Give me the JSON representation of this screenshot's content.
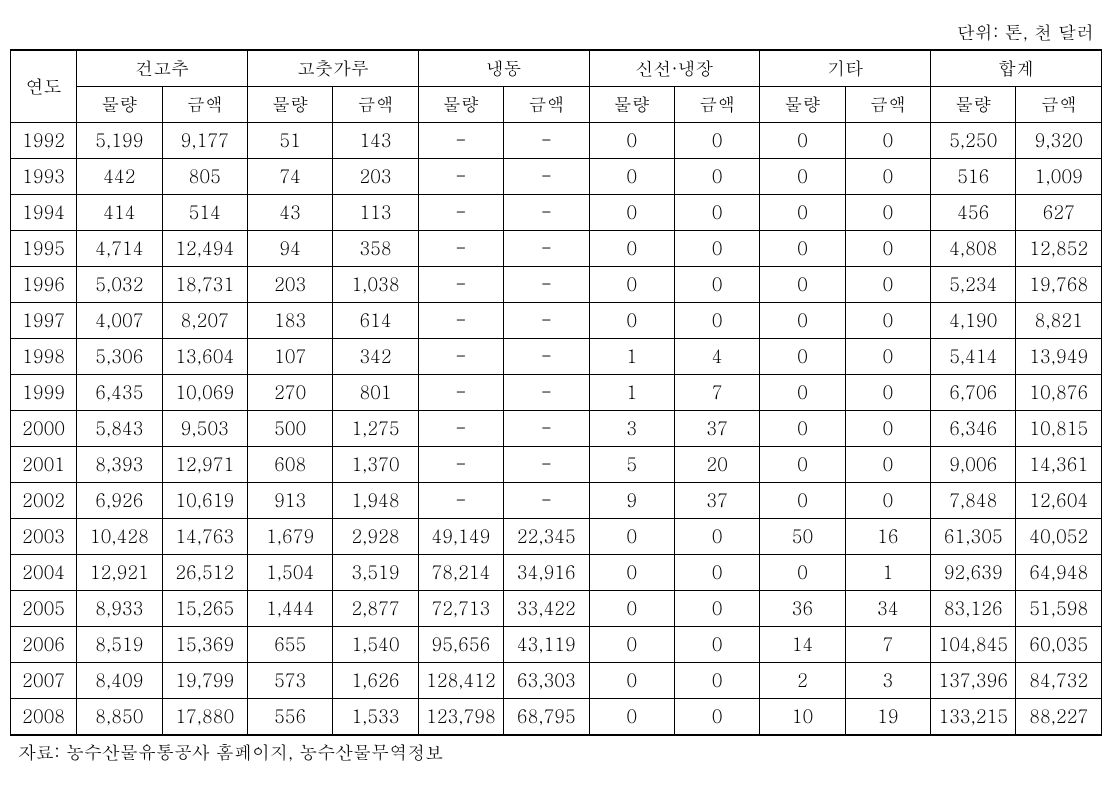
{
  "unit_label": "단위: 톤, 천 달러",
  "source_label": "자료: 농수산물유통공사 홈페이지, 농수산물무역정보",
  "headers": {
    "year": "연도",
    "groups": [
      "건고추",
      "고춧가루",
      "냉동",
      "신선·냉장",
      "기타",
      "합계"
    ],
    "sub": {
      "qty": "물량",
      "amt": "금액"
    }
  },
  "rows": [
    {
      "year": "1992",
      "c": [
        "5,199",
        "9,177",
        "51",
        "143",
        "-",
        "-",
        "0",
        "0",
        "0",
        "0",
        "5,250",
        "9,320"
      ]
    },
    {
      "year": "1993",
      "c": [
        "442",
        "805",
        "74",
        "203",
        "-",
        "-",
        "0",
        "0",
        "0",
        "0",
        "516",
        "1,009"
      ]
    },
    {
      "year": "1994",
      "c": [
        "414",
        "514",
        "43",
        "113",
        "-",
        "-",
        "0",
        "0",
        "0",
        "0",
        "456",
        "627"
      ]
    },
    {
      "year": "1995",
      "c": [
        "4,714",
        "12,494",
        "94",
        "358",
        "-",
        "-",
        "0",
        "0",
        "0",
        "0",
        "4,808",
        "12,852"
      ]
    },
    {
      "year": "1996",
      "c": [
        "5,032",
        "18,731",
        "203",
        "1,038",
        "-",
        "-",
        "0",
        "0",
        "0",
        "0",
        "5,234",
        "19,768"
      ]
    },
    {
      "year": "1997",
      "c": [
        "4,007",
        "8,207",
        "183",
        "614",
        "-",
        "-",
        "0",
        "0",
        "0",
        "0",
        "4,190",
        "8,821"
      ]
    },
    {
      "year": "1998",
      "c": [
        "5,306",
        "13,604",
        "107",
        "342",
        "-",
        "-",
        "1",
        "4",
        "0",
        "0",
        "5,414",
        "13,949"
      ]
    },
    {
      "year": "1999",
      "c": [
        "6,435",
        "10,069",
        "270",
        "801",
        "-",
        "-",
        "1",
        "7",
        "0",
        "0",
        "6,706",
        "10,876"
      ]
    },
    {
      "year": "2000",
      "c": [
        "5,843",
        "9,503",
        "500",
        "1,275",
        "-",
        "-",
        "3",
        "37",
        "0",
        "0",
        "6,346",
        "10,815"
      ]
    },
    {
      "year": "2001",
      "c": [
        "8,393",
        "12,971",
        "608",
        "1,370",
        "-",
        "-",
        "5",
        "20",
        "0",
        "0",
        "9,006",
        "14,361"
      ]
    },
    {
      "year": "2002",
      "c": [
        "6,926",
        "10,619",
        "913",
        "1,948",
        "-",
        "-",
        "9",
        "37",
        "0",
        "0",
        "7,848",
        "12,604"
      ]
    },
    {
      "year": "2003",
      "c": [
        "10,428",
        "14,763",
        "1,679",
        "2,928",
        "49,149",
        "22,345",
        "0",
        "0",
        "50",
        "16",
        "61,305",
        "40,052"
      ]
    },
    {
      "year": "2004",
      "c": [
        "12,921",
        "26,512",
        "1,504",
        "3,519",
        "78,214",
        "34,916",
        "0",
        "0",
        "0",
        "1",
        "92,639",
        "64,948"
      ]
    },
    {
      "year": "2005",
      "c": [
        "8,933",
        "15,265",
        "1,444",
        "2,877",
        "72,713",
        "33,422",
        "0",
        "0",
        "36",
        "34",
        "83,126",
        "51,598"
      ]
    },
    {
      "year": "2006",
      "c": [
        "8,519",
        "15,369",
        "655",
        "1,540",
        "95,656",
        "43,119",
        "0",
        "0",
        "14",
        "7",
        "104,845",
        "60,035"
      ]
    },
    {
      "year": "2007",
      "c": [
        "8,409",
        "19,799",
        "573",
        "1,626",
        "128,412",
        "63,303",
        "0",
        "0",
        "2",
        "3",
        "137,396",
        "84,732"
      ]
    },
    {
      "year": "2008",
      "c": [
        "8,850",
        "17,880",
        "556",
        "1,533",
        "123,798",
        "68,795",
        "0",
        "0",
        "10",
        "19",
        "133,215",
        "88,227"
      ]
    }
  ],
  "styling": {
    "type": "table",
    "border_color": "#000000",
    "background_color": "#ffffff",
    "text_color": "#000000",
    "font_size": 18,
    "col_count": 13,
    "row_count": 17
  }
}
